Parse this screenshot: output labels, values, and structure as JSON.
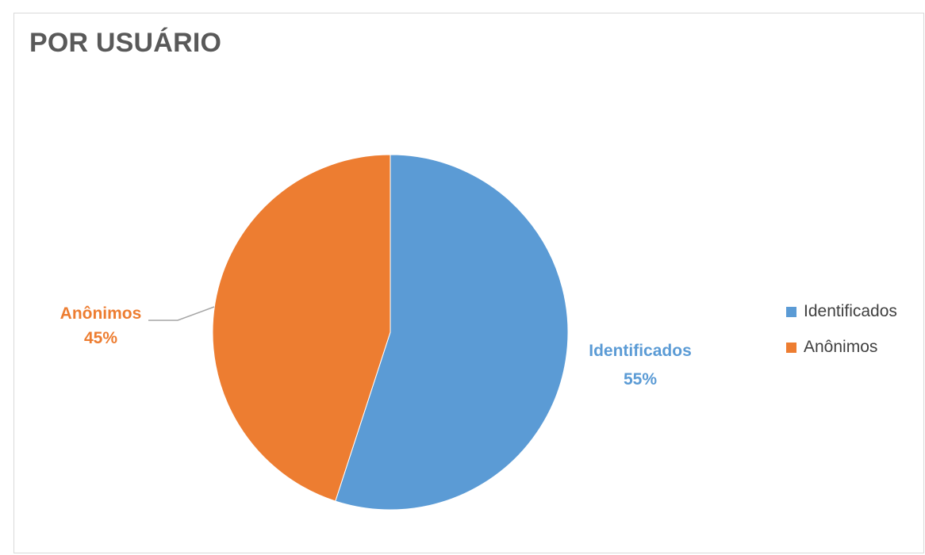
{
  "chart_data": {
    "type": "pie",
    "title": "POR USUÁRIO",
    "categories": [
      "Identificados",
      "Anônimos"
    ],
    "values": [
      55,
      45
    ],
    "colors": [
      "#5b9bd5",
      "#ed7d31"
    ],
    "start_angle_deg": 0,
    "direction": "clockwise",
    "data_labels": [
      {
        "category": "Identificados",
        "percent_text": "55%"
      },
      {
        "category": "Anônimos",
        "percent_text": "45%"
      }
    ],
    "legend": {
      "position": "right",
      "items": [
        {
          "label": "Identificados",
          "color": "#5b9bd5"
        },
        {
          "label": "Anônimos",
          "color": "#ed7d31"
        }
      ]
    }
  }
}
